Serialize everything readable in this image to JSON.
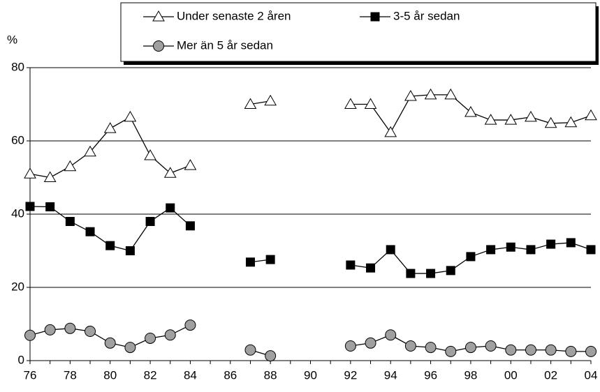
{
  "chart_data": {
    "type": "line",
    "y_label": "%",
    "legend": "top",
    "grid": true,
    "categories": [
      "76",
      null,
      "78",
      null,
      "80",
      null,
      "82",
      null,
      "84",
      null,
      "86",
      null,
      "88",
      null,
      "90",
      null,
      "92",
      null,
      "94",
      null,
      "96",
      null,
      "98",
      null,
      "00",
      null,
      "02",
      null,
      "04"
    ],
    "ylim": [
      0,
      80
    ],
    "yticks": [
      0,
      20,
      40,
      60,
      80
    ],
    "series": [
      {
        "name": "Under senaste 2 åren",
        "color": "#000000",
        "marker": "triangle",
        "marker_fill": "#ffffff",
        "values": [
          51,
          50,
          53,
          57,
          63.4,
          66.5,
          56,
          51.2,
          53.3,
          null,
          null,
          70,
          70.9,
          null,
          null,
          null,
          70,
          70,
          62.3,
          72.2,
          72.6,
          72.6,
          67.8,
          65.7,
          65.7,
          66.5,
          64.8,
          65,
          66.9
        ]
      },
      {
        "name": "3-5 år sedan",
        "color": "#000000",
        "marker": "square",
        "marker_fill": "#000000",
        "values": [
          42.1,
          42,
          38,
          35.2,
          31.4,
          30,
          38,
          41.7,
          36.8,
          null,
          null,
          26.9,
          27.6,
          null,
          null,
          null,
          26.1,
          25.3,
          30.3,
          23.8,
          23.8,
          24.6,
          28.4,
          30.3,
          31,
          30.3,
          31.8,
          32.2,
          30.3
        ]
      },
      {
        "name": "Mer än 5 år sedan",
        "color": "#000000",
        "marker": "circle",
        "marker_fill": "#a0a0a0",
        "values": [
          6.9,
          8.4,
          8.8,
          8,
          4.8,
          3.6,
          6.1,
          7,
          9.7,
          null,
          null,
          2.9,
          1.3,
          null,
          null,
          null,
          4,
          4.8,
          7,
          4,
          3.6,
          2.5,
          3.6,
          4,
          2.9,
          2.9,
          2.9,
          2.5,
          2.5
        ]
      }
    ]
  }
}
